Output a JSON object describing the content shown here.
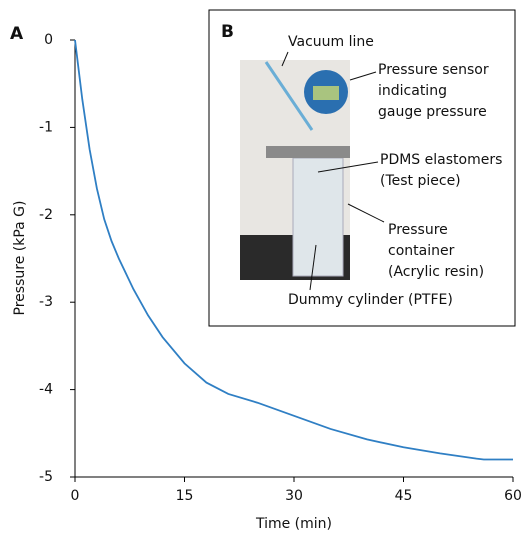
{
  "chart_data": {
    "type": "line",
    "panel_label": "A",
    "xlabel": "Time (min)",
    "ylabel": "Pressure (kPa G)",
    "x": [
      0,
      1,
      2,
      3,
      4,
      5,
      6,
      8,
      10,
      12,
      15,
      18,
      21,
      25,
      30,
      35,
      40,
      45,
      50,
      55,
      56,
      60
    ],
    "values": [
      0,
      -0.68,
      -1.25,
      -1.7,
      -2.05,
      -2.3,
      -2.5,
      -2.85,
      -3.15,
      -3.4,
      -3.7,
      -3.92,
      -4.05,
      -4.15,
      -4.3,
      -4.45,
      -4.57,
      -4.66,
      -4.73,
      -4.79,
      -4.8,
      -4.8
    ],
    "color": "#2f7fc4",
    "xlim": [
      0,
      60
    ],
    "xticks": [
      0,
      15,
      30,
      45,
      60
    ],
    "ylim": [
      -5,
      0
    ],
    "yticks": [
      0,
      -1,
      -2,
      -3,
      -4,
      -5
    ],
    "inset": {
      "panel_label": "B",
      "annotations": [
        {
          "lines": [
            "Vacuum line"
          ]
        },
        {
          "lines": [
            "Pressure sensor",
            "indicating",
            "gauge pressure"
          ]
        },
        {
          "lines": [
            "PDMS elastomers",
            "(Test piece)"
          ]
        },
        {
          "lines": [
            "Pressure",
            "container",
            "(Acrylic resin)"
          ]
        },
        {
          "lines": [
            "Dummy cylinder (PTFE)"
          ]
        }
      ]
    }
  }
}
